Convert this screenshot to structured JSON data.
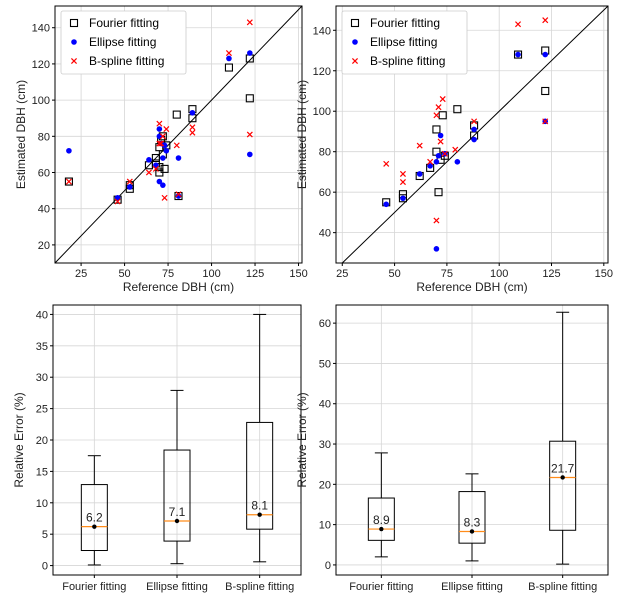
{
  "chart_data": [
    {
      "type": "scatter",
      "xlabel": "Reference DBH (cm)",
      "ylabel": "Estimated DBH (cm)",
      "xlim": [
        10,
        152
      ],
      "ylim": [
        10,
        152
      ],
      "xticks": [
        25,
        50,
        75,
        100,
        125,
        150
      ],
      "yticks": [
        20,
        40,
        60,
        80,
        100,
        120,
        140
      ],
      "grid": true,
      "legend_position": "top-left",
      "identity_line": true,
      "series": [
        {
          "name": "Fourier fitting",
          "marker": "open-square",
          "color": "#000000",
          "points": [
            [
              18,
              55
            ],
            [
              46,
              45
            ],
            [
              53,
              51
            ],
            [
              53,
              53
            ],
            [
              64,
              64
            ],
            [
              68,
              65
            ],
            [
              68,
              68
            ],
            [
              70,
              60
            ],
            [
              70,
              63
            ],
            [
              70,
              74
            ],
            [
              71,
              78
            ],
            [
              72,
              70
            ],
            [
              72,
              80
            ],
            [
              73,
              62
            ],
            [
              74,
              75
            ],
            [
              80,
              92
            ],
            [
              81,
              47
            ],
            [
              89,
              90
            ],
            [
              89,
              95
            ],
            [
              110,
              118
            ],
            [
              122,
              123
            ],
            [
              122,
              101
            ]
          ]
        },
        {
          "name": "Ellipse fitting",
          "marker": "filled-circle",
          "color": "#0000ff",
          "points": [
            [
              18,
              72
            ],
            [
              46,
              46
            ],
            [
              53,
              52
            ],
            [
              64,
              67
            ],
            [
              68,
              64
            ],
            [
              70,
              55
            ],
            [
              70,
              80
            ],
            [
              70,
              84
            ],
            [
              71,
              76
            ],
            [
              72,
              68
            ],
            [
              72,
              53
            ],
            [
              73,
              75
            ],
            [
              74,
              72
            ],
            [
              81,
              47
            ],
            [
              81,
              68
            ],
            [
              89,
              93
            ],
            [
              110,
              123
            ],
            [
              122,
              126
            ],
            [
              122,
              70
            ]
          ]
        },
        {
          "name": "B-spline fitting",
          "marker": "x",
          "color": "#ff0000",
          "points": [
            [
              18,
              55
            ],
            [
              46,
              44
            ],
            [
              53,
              55
            ],
            [
              64,
              60
            ],
            [
              68,
              62
            ],
            [
              70,
              76
            ],
            [
              70,
              87
            ],
            [
              71,
              76
            ],
            [
              72,
              80
            ],
            [
              73,
              46
            ],
            [
              74,
              84
            ],
            [
              80,
              75
            ],
            [
              81,
              48
            ],
            [
              89,
              82
            ],
            [
              89,
              85
            ],
            [
              110,
              126
            ],
            [
              122,
              143
            ],
            [
              122,
              81
            ]
          ]
        }
      ]
    },
    {
      "type": "scatter",
      "xlabel": "Reference DBH (cm)",
      "ylabel": "Estimated DBH (cm)",
      "xlim": [
        22,
        152
      ],
      "ylim": [
        25,
        152
      ],
      "xticks": [
        25,
        50,
        75,
        100,
        125,
        150
      ],
      "yticks": [
        40,
        60,
        80,
        100,
        120,
        140
      ],
      "grid": true,
      "legend_position": "top-left",
      "identity_line": true,
      "series": [
        {
          "name": "Fourier fitting",
          "marker": "open-square",
          "color": "#000000",
          "points": [
            [
              46,
              55
            ],
            [
              54,
              57
            ],
            [
              54,
              59
            ],
            [
              62,
              68
            ],
            [
              67,
              72
            ],
            [
              70,
              91
            ],
            [
              70,
              80
            ],
            [
              71,
              60
            ],
            [
              72,
              76
            ],
            [
              73,
              98
            ],
            [
              74,
              78
            ],
            [
              80,
              101
            ],
            [
              88,
              93
            ],
            [
              88,
              88
            ],
            [
              109,
              128
            ],
            [
              122,
              130
            ],
            [
              122,
              110
            ]
          ]
        },
        {
          "name": "Ellipse fitting",
          "marker": "filled-circle",
          "color": "#0000ff",
          "points": [
            [
              46,
              54
            ],
            [
              54,
              57
            ],
            [
              62,
              69
            ],
            [
              67,
              73
            ],
            [
              70,
              32
            ],
            [
              70,
              75
            ],
            [
              71,
              78
            ],
            [
              72,
              88
            ],
            [
              74,
              79
            ],
            [
              80,
              75
            ],
            [
              88,
              86
            ],
            [
              88,
              91
            ],
            [
              109,
              128
            ],
            [
              122,
              128
            ],
            [
              122,
              95
            ]
          ]
        },
        {
          "name": "B-spline fitting",
          "marker": "x",
          "color": "#ff0000",
          "points": [
            [
              46,
              74
            ],
            [
              54,
              69
            ],
            [
              54,
              65
            ],
            [
              62,
              83
            ],
            [
              67,
              75
            ],
            [
              70,
              98
            ],
            [
              70,
              46
            ],
            [
              71,
              102
            ],
            [
              72,
              85
            ],
            [
              73,
              106
            ],
            [
              74,
              79
            ],
            [
              79,
              81
            ],
            [
              88,
              95
            ],
            [
              109,
              143
            ],
            [
              122,
              145
            ],
            [
              122,
              95
            ]
          ]
        }
      ]
    },
    {
      "type": "box",
      "ylabel": "Relative Error (%)",
      "ylim": [
        -1.5,
        41.5
      ],
      "yticks": [
        0,
        5,
        10,
        15,
        20,
        25,
        30,
        35,
        40
      ],
      "grid": true,
      "categories": [
        "Fourier fitting",
        "Ellipse fitting",
        "B-spline fitting"
      ],
      "boxes": [
        {
          "whislo": 0.1,
          "q1": 2.4,
          "med": 6.2,
          "q3": 12.9,
          "whishi": 17.5,
          "mean": 6.2,
          "label": "6.2"
        },
        {
          "whislo": 0.3,
          "q1": 3.9,
          "med": 7.1,
          "q3": 18.4,
          "whishi": 27.9,
          "mean": 7.1,
          "label": "7.1"
        },
        {
          "whislo": 0.6,
          "q1": 5.8,
          "med": 8.1,
          "q3": 22.8,
          "whishi": 40.0,
          "mean": 8.1,
          "label": "8.1"
        }
      ]
    },
    {
      "type": "box",
      "ylabel": "Relative Error (%)",
      "ylim": [
        -2.5,
        64.5
      ],
      "yticks": [
        0,
        10,
        20,
        30,
        40,
        50,
        60
      ],
      "grid": true,
      "categories": [
        "Fourier fitting",
        "Ellipse fitting",
        "B-spline fitting"
      ],
      "boxes": [
        {
          "whislo": 2.0,
          "q1": 6.1,
          "med": 8.9,
          "q3": 16.6,
          "whishi": 27.8,
          "mean": 8.9,
          "label": "8.9"
        },
        {
          "whislo": 1.0,
          "q1": 5.4,
          "med": 8.3,
          "q3": 18.2,
          "whishi": 22.6,
          "mean": 8.3,
          "label": "8.3"
        },
        {
          "whislo": 0.2,
          "q1": 8.6,
          "med": 21.7,
          "q3": 30.7,
          "whishi": 62.7,
          "mean": 21.7,
          "label": "21.7"
        }
      ]
    }
  ]
}
